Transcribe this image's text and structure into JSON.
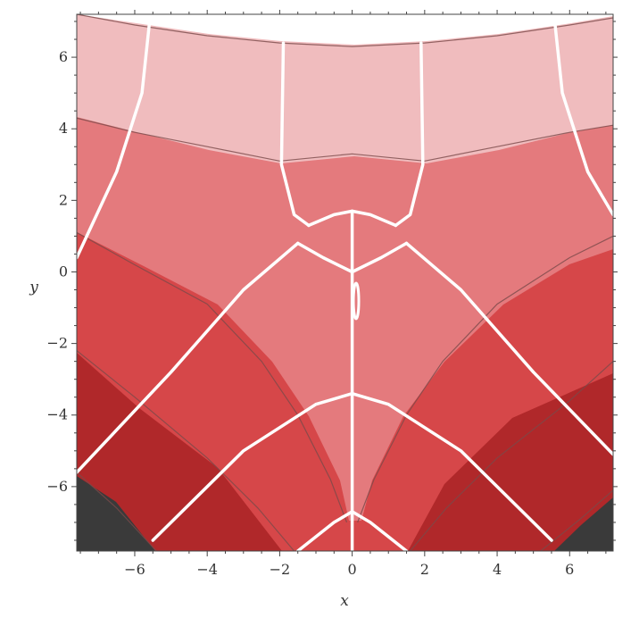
{
  "chart_data": {
    "type": "contour",
    "xlabel": "x",
    "ylabel": "y",
    "xlim": [
      -7.6,
      7.2
    ],
    "ylim": [
      -7.8,
      7.2
    ],
    "x_ticks": [
      -6,
      -4,
      -2,
      0,
      2,
      4,
      6
    ],
    "y_ticks": [
      -6,
      -4,
      -2,
      0,
      2,
      4,
      6
    ],
    "x_tick_labels": [
      "−6",
      "−4",
      "−2",
      "0",
      "2",
      "4",
      "6"
    ],
    "y_tick_labels": [
      "−6",
      "−4",
      "−2",
      "0",
      "2",
      "4",
      "6"
    ],
    "level_colors": [
      "#ffffff",
      "#f0bcbe",
      "#e47a7d",
      "#d64749",
      "#b0282a",
      "#3a3a3a"
    ],
    "boundary_color": "#7a4a4a",
    "stream_color": "#ffffff",
    "contour_boundaries": [
      [
        [
          -7.6,
          7.2
        ],
        [
          -6,
          6.9
        ],
        [
          -4,
          6.6
        ],
        [
          -2,
          6.4
        ],
        [
          0,
          6.3
        ],
        [
          2,
          6.4
        ],
        [
          4,
          6.6
        ],
        [
          6,
          6.9
        ],
        [
          7.2,
          7.1
        ]
      ],
      [
        [
          -7.6,
          4.3
        ],
        [
          -6,
          3.9
        ],
        [
          -4,
          3.5
        ],
        [
          -2,
          3.1
        ],
        [
          0,
          3.3
        ],
        [
          2,
          3.1
        ],
        [
          4,
          3.5
        ],
        [
          6,
          3.9
        ],
        [
          7.2,
          4.1
        ]
      ],
      [
        [
          -7.6,
          1.1
        ],
        [
          -6,
          0.2
        ],
        [
          -4,
          -0.9
        ],
        [
          -2.5,
          -2.5
        ],
        [
          -1.5,
          -4.0
        ],
        [
          -0.6,
          -5.8
        ],
        [
          -0.15,
          -7.0
        ]
      ],
      [
        [
          0.15,
          -7.0
        ],
        [
          0.6,
          -5.8
        ],
        [
          1.5,
          -4.0
        ],
        [
          2.5,
          -2.5
        ],
        [
          4,
          -0.9
        ],
        [
          6,
          0.4
        ],
        [
          7.2,
          1.0
        ]
      ],
      [
        [
          -7.6,
          -2.2
        ],
        [
          -6,
          -3.5
        ],
        [
          -4,
          -5.2
        ],
        [
          -2.6,
          -6.6
        ],
        [
          -1.6,
          -7.8
        ]
      ],
      [
        [
          1.6,
          -7.8
        ],
        [
          2.6,
          -6.6
        ],
        [
          4,
          -5.2
        ],
        [
          6,
          -3.6
        ],
        [
          7.2,
          -2.5
        ]
      ],
      [
        [
          -7.6,
          -5.6
        ],
        [
          -6.5,
          -6.6
        ],
        [
          -5.4,
          -7.8
        ]
      ],
      [
        [
          5.2,
          -7.8
        ],
        [
          6.3,
          -6.9
        ],
        [
          7.2,
          -6.1
        ]
      ]
    ],
    "streamlines": [
      [
        [
          0,
          -7.8
        ],
        [
          0,
          1.7
        ]
      ],
      [
        [
          -7.6,
          0.4
        ],
        [
          -6.5,
          2.8
        ],
        [
          -5.8,
          5.0
        ],
        [
          -5.6,
          6.9
        ]
      ],
      [
        [
          -1.9,
          6.4
        ],
        [
          -1.95,
          3.0
        ],
        [
          -1.6,
          1.6
        ],
        [
          -1.2,
          1.3
        ]
      ],
      [
        [
          -1.2,
          1.3
        ],
        [
          -0.5,
          1.6
        ],
        [
          0,
          1.7
        ],
        [
          0.5,
          1.6
        ],
        [
          1.2,
          1.3
        ]
      ],
      [
        [
          1.9,
          6.4
        ],
        [
          1.95,
          3.0
        ],
        [
          1.6,
          1.6
        ],
        [
          1.2,
          1.3
        ]
      ],
      [
        [
          5.6,
          6.9
        ],
        [
          5.8,
          5.0
        ],
        [
          6.5,
          2.8
        ],
        [
          7.2,
          1.6
        ]
      ],
      [
        [
          -1.5,
          0.8
        ],
        [
          -0.8,
          0.4
        ],
        [
          0,
          0
        ],
        [
          0.8,
          0.4
        ],
        [
          1.5,
          0.8
        ]
      ],
      [
        [
          -7.6,
          -5.6
        ],
        [
          -5,
          -2.8
        ],
        [
          -3,
          -0.5
        ],
        [
          -1.5,
          0.8
        ]
      ],
      [
        [
          1.5,
          0.8
        ],
        [
          3,
          -0.5
        ],
        [
          5,
          -2.8
        ],
        [
          7.2,
          -5.1
        ]
      ],
      [
        [
          -5.5,
          -7.5
        ],
        [
          -3,
          -5
        ],
        [
          -1,
          -3.7
        ],
        [
          0,
          -3.4
        ]
      ],
      [
        [
          0,
          -3.4
        ],
        [
          1,
          -3.7
        ],
        [
          3,
          -5
        ],
        [
          5.5,
          -7.5
        ]
      ],
      [
        [
          -1.5,
          -7.8
        ],
        [
          -0.5,
          -7.0
        ],
        [
          0,
          -6.7
        ]
      ],
      [
        [
          0,
          -6.7
        ],
        [
          0.5,
          -7.0
        ],
        [
          1.5,
          -7.8
        ]
      ]
    ]
  }
}
